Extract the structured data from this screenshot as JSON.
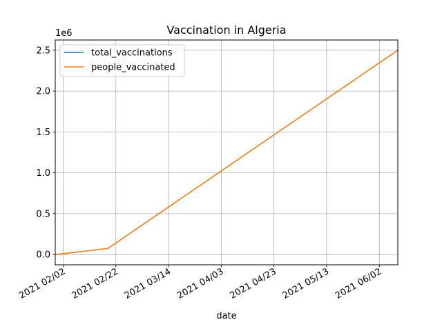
{
  "chart_data": {
    "type": "line",
    "title": "Vaccination in Algeria",
    "xlabel": "date",
    "ylabel": "",
    "y_offset_text": "1e6",
    "x_ticks": [
      {
        "date": "2021-02-02",
        "label": "2021 02/02"
      },
      {
        "date": "2021-02-22",
        "label": "2021 02/22"
      },
      {
        "date": "2021-03-14",
        "label": "2021 03/14"
      },
      {
        "date": "2021-04-03",
        "label": "2021 04/03"
      },
      {
        "date": "2021-04-23",
        "label": "2021 04/23"
      },
      {
        "date": "2021-05-13",
        "label": "2021 05/13"
      },
      {
        "date": "2021-06-02",
        "label": "2021 06/02"
      }
    ],
    "y_ticks": [
      {
        "value": 0,
        "label": "0.0"
      },
      {
        "value": 500000,
        "label": "0.5"
      },
      {
        "value": 1000000,
        "label": "1.0"
      },
      {
        "value": 1500000,
        "label": "1.5"
      },
      {
        "value": 2000000,
        "label": "2.0"
      },
      {
        "value": 2500000,
        "label": "2.5"
      }
    ],
    "xlim": [
      "2021-01-30",
      "2021-06-09"
    ],
    "ylim": [
      -125000,
      2625000
    ],
    "grid": true,
    "legend_position": "top-left",
    "series": [
      {
        "name": "total_vaccinations",
        "color": "#1f77b4",
        "points": [
          {
            "x": "2021-01-30",
            "y": 0
          },
          {
            "x": "2021-02-19",
            "y": 75000
          },
          {
            "x": "2021-06-09",
            "y": 2500000
          }
        ]
      },
      {
        "name": "people_vaccinated",
        "color": "#ff7f0e",
        "points": [
          {
            "x": "2021-01-30",
            "y": 0
          },
          {
            "x": "2021-02-19",
            "y": 75000
          },
          {
            "x": "2021-06-09",
            "y": 2500000
          }
        ]
      }
    ]
  }
}
